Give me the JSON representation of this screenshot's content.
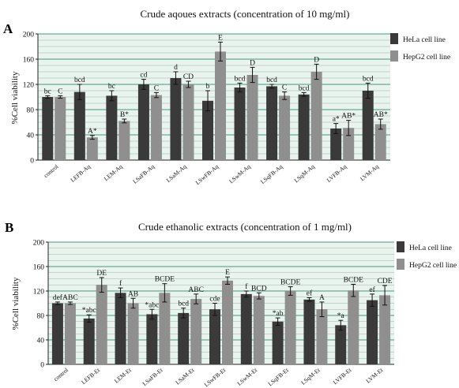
{
  "colors": {
    "hela": "#3a3a3a",
    "hepg2": "#8f8f8f",
    "grid": "#2f8f74",
    "plot_bg": "#eaf3ee"
  },
  "chart_data": [
    {
      "panel": "A",
      "type": "bar",
      "title": "Crude aqoues extracts (concentration of 10 mg/ml)",
      "ylabel": "%Cell viability",
      "xlabel": "",
      "ylim": [
        0,
        200
      ],
      "yticks": [
        0,
        40,
        80,
        120,
        160,
        200
      ],
      "grid": true,
      "legend_position": "top-right",
      "categories": [
        "control",
        "LEFB-Aq",
        "LEM-Aq",
        "LSaFB-Aq",
        "LSaM-Aq",
        "LSwFB-Aq",
        "LSwM-Aq",
        "LSqFB-Aq",
        "LSqM-Aq",
        "LVFB-Aq",
        "LVM-Aq"
      ],
      "series": [
        {
          "name": "HeLa cell line",
          "values": [
            100,
            108,
            102,
            120,
            130,
            94,
            115,
            117,
            104,
            50,
            110
          ],
          "errors": [
            2,
            12,
            8,
            8,
            10,
            16,
            7,
            3,
            3,
            8,
            12
          ],
          "labels": [
            "bc",
            "bcd",
            "bc",
            "cd",
            "d",
            "b",
            "bcd",
            "bcd",
            "bcd",
            "a*",
            "bcd"
          ]
        },
        {
          "name": "HepG2 cell line",
          "values": [
            100,
            36,
            62,
            103,
            120,
            172,
            135,
            102,
            140,
            51,
            57
          ],
          "errors": [
            2,
            3,
            3,
            4,
            5,
            15,
            12,
            6,
            12,
            12,
            8
          ],
          "labels": [
            "C",
            "A*",
            "B*",
            "C",
            "CD",
            "E",
            "D",
            "C",
            "D",
            "AB*",
            "AB*"
          ]
        }
      ]
    },
    {
      "panel": "B",
      "type": "bar",
      "title": "Crude ethanolic extracts (concentration of 1 mg/ml)",
      "ylabel": "%Cell viability",
      "xlabel": "",
      "ylim": [
        0,
        200
      ],
      "yticks": [
        0,
        40,
        80,
        120,
        160,
        200
      ],
      "grid": true,
      "legend_position": "top-right",
      "categories": [
        "control",
        "LEFB-Et",
        "LEM-Et",
        "LSaFB-Et",
        "LSaM-Et",
        "LSwFB-Et",
        "LSwM-Et",
        "LSqFB-Et",
        "LSqM-Et",
        "LVFB-Et",
        "LVM-Et"
      ],
      "series": [
        {
          "name": "HeLa cell line",
          "values": [
            100,
            75,
            117,
            82,
            84,
            90,
            115,
            70,
            106,
            64,
            105
          ],
          "errors": [
            2,
            6,
            8,
            8,
            8,
            10,
            5,
            6,
            3,
            8,
            10
          ],
          "labels": [
            "def",
            "*abc",
            "f",
            "*abc",
            "bcd",
            "cde",
            "f",
            "*ab",
            "ef",
            "*a",
            "ef"
          ]
        },
        {
          "name": "HepG2 cell line",
          "values": [
            100,
            130,
            100,
            117,
            107,
            137,
            112,
            120,
            90,
            121,
            113
          ],
          "errors": [
            2,
            12,
            8,
            15,
            8,
            6,
            5,
            7,
            12,
            10,
            16
          ],
          "labels": [
            "ABC",
            "DE",
            "AB",
            "BCDE",
            "ABC",
            "E",
            "BCD",
            "BCDE",
            "A",
            "BCDE",
            "CDE"
          ]
        }
      ]
    }
  ]
}
